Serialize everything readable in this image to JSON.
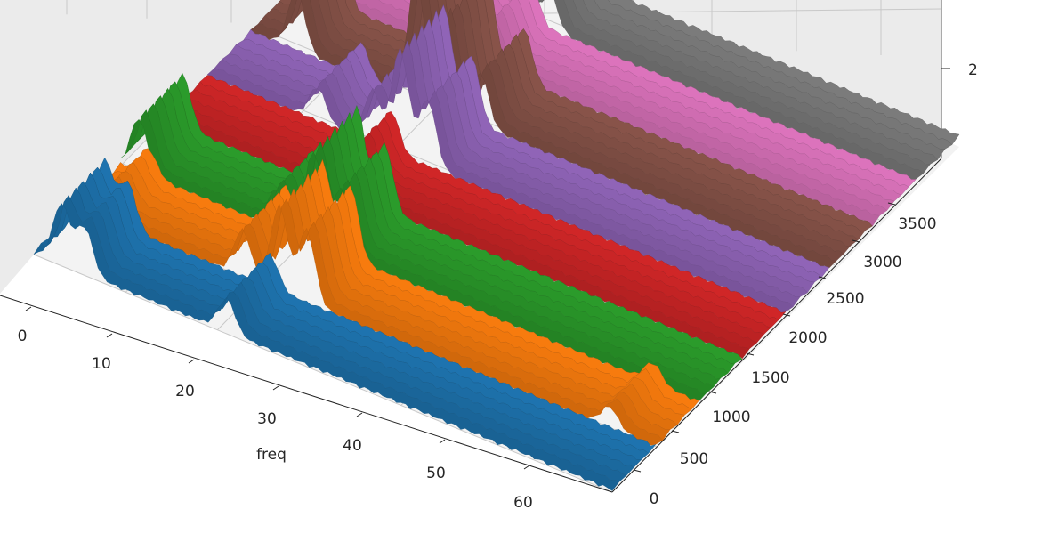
{
  "chart_data": {
    "type": "surface-3d-waterfall",
    "title": "",
    "xlabel": "freq",
    "ylabel": "",
    "zlabel": "",
    "x_ticks": [
      "0",
      "10",
      "20",
      "30",
      "40",
      "50",
      "60"
    ],
    "y_ticks": [
      "0",
      "500",
      "1000",
      "1500",
      "2000",
      "2500",
      "3000",
      "3500"
    ],
    "z_ticks": [
      "2"
    ],
    "xlim": [
      0,
      63
    ],
    "ylim": [
      0,
      3900
    ],
    "grid": true,
    "series": [
      {
        "color": "#1f77b4",
        "peaks": [
          {
            "x": 3,
            "h": 0.9
          },
          {
            "x": 5.5,
            "h": 0.7
          },
          {
            "x": 21,
            "h": 0.5
          }
        ]
      },
      {
        "color": "#ff7f0e",
        "peaks": [
          {
            "x": 3,
            "h": 0.4
          },
          {
            "x": 18,
            "h": 0.7
          },
          {
            "x": 22,
            "h": 1.3
          },
          {
            "x": 25,
            "h": 1.1
          },
          {
            "x": 58,
            "h": 0.3
          }
        ]
      },
      {
        "color": "#2ca02c",
        "peaks": [
          {
            "x": 2,
            "h": 0.8
          },
          {
            "x": 17,
            "h": 0.6
          },
          {
            "x": 21,
            "h": 1.4
          },
          {
            "x": 24,
            "h": 1.0
          }
        ]
      },
      {
        "color": "#d62728",
        "peaks": [
          {
            "x": 20,
            "h": 0.6
          }
        ]
      },
      {
        "color": "#9467bd",
        "peaks": [
          {
            "x": 12,
            "h": 0.5
          },
          {
            "x": 18,
            "h": 0.8
          },
          {
            "x": 21,
            "h": 1.6
          },
          {
            "x": 24,
            "h": 1.0
          }
        ]
      },
      {
        "color": "#8c564b",
        "peaks": [
          {
            "x": 5,
            "h": 0.9
          },
          {
            "x": 18,
            "h": 1.8
          },
          {
            "x": 21,
            "h": 1.4
          },
          {
            "x": 25,
            "h": 0.8
          }
        ]
      },
      {
        "color": "#e377c2",
        "peaks": [
          {
            "x": 2,
            "h": 0.5
          },
          {
            "x": 18,
            "h": 0.8
          },
          {
            "x": 21,
            "h": 0.6
          }
        ]
      },
      {
        "color": "#7f7f7f",
        "peaks": [
          {
            "x": 14,
            "h": 0.4
          },
          {
            "x": 19,
            "h": 1.9
          },
          {
            "x": 23,
            "h": 0.6
          }
        ]
      }
    ]
  }
}
